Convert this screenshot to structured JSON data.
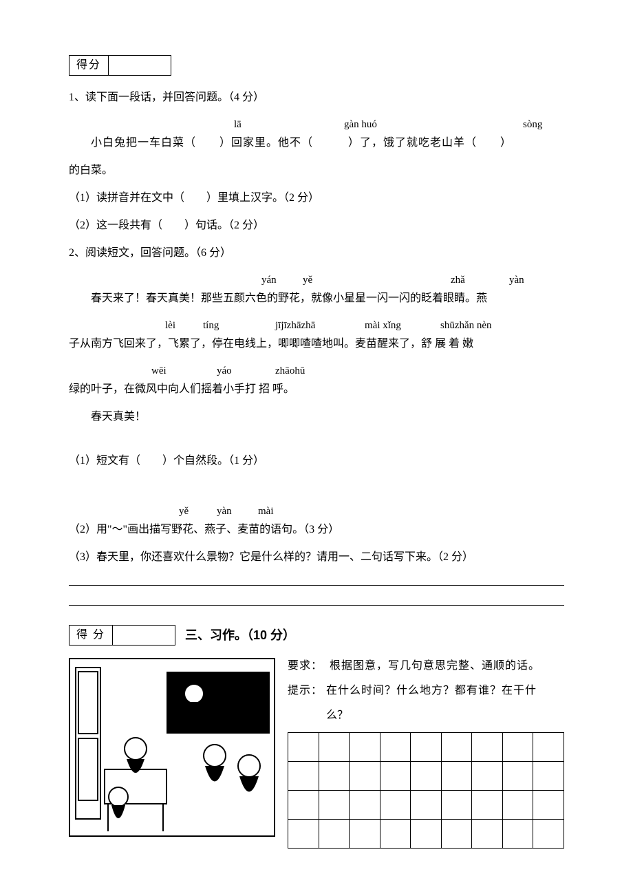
{
  "score_box_1": {
    "label": "得分"
  },
  "q1": {
    "title": "1、读下面一段话，并回答问题。（4 分）",
    "pinyin": {
      "p1": "lā",
      "p2": "gàn huó",
      "p3": "sòng"
    },
    "line1": "小白兔把一车白菜（　　）回家里。他不（　　　）了，饿了就吃老山羊（　　）",
    "line2": "的白菜。",
    "sub1": "（1）读拼音并在文中（　　）里填上汉字。（2 分）",
    "sub2": "（2）这一段共有（　　）句话。（2 分）"
  },
  "q2": {
    "title": "2、阅读短文，回答问题。（6 分）",
    "row1_pinyin": {
      "p1": "yán",
      "p2": "yě",
      "p3": "zhǎ",
      "p4": "yàn"
    },
    "row1_text": "春天来了！春天真美！那些五颜六色的野花，就像小星星一闪一闪的眨着眼睛。燕",
    "row2_pinyin": {
      "p1": "lèi",
      "p2": "tíng",
      "p3": "jījīzhāzhā",
      "p4": "mài xǐng",
      "p5": "shūzhǎn nèn"
    },
    "row2_text": "子从南方飞回来了，飞累了，停在电线上，唧唧喳喳地叫。麦苗醒来了，舒 展 着 嫩",
    "row3_pinyin": {
      "p1": "wēi",
      "p2": "yáo",
      "p3": "zhāohū"
    },
    "row3_text": "绿的叶子，在微风中向人们摇着小手打 招 呼。",
    "row4_text": "春天真美！",
    "sub1": "（1）短文有（　　）个自然段。（1 分）",
    "sub2_pinyin": {
      "p1": "yě",
      "p2": "yàn",
      "p3": "mài"
    },
    "sub2": "（2）用\"～\"画出描写野花、燕子、麦苗的语句。（3 分）",
    "sub3": "（3）春天里，你还喜欢什么景物？它是什么样的？请用一、二句话写下来。（2 分）"
  },
  "score_box_2": {
    "label": "得 分"
  },
  "section3": {
    "title": "三、习作。（10 分）",
    "req_label": "要求：",
    "req_text": "根据图意，写几句意思完整、通顺的话。",
    "hint_label": "提示：",
    "hint_text": "在什么时间？什么地方？都有谁？在干什",
    "hint_text2": "么？"
  },
  "grid": {
    "rows": 4,
    "cols": 9
  },
  "colors": {
    "text": "#000000",
    "bg": "#ffffff",
    "border": "#000000"
  }
}
